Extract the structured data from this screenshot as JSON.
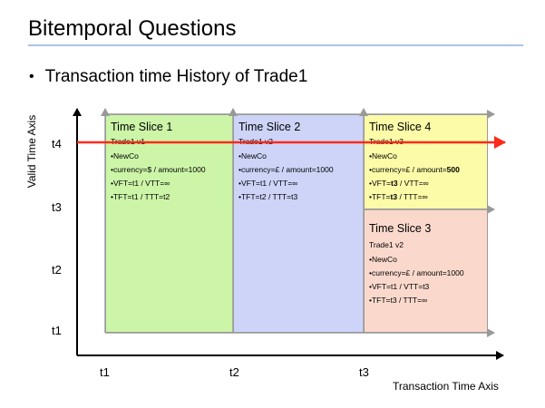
{
  "title": "Bitemporal Questions",
  "bullet": "Transaction time History of Trade1",
  "axes": {
    "y_label": "Valid Time Axis",
    "x_label": "Transaction Time Axis",
    "y_ticks": [
      "t4",
      "t3",
      "t2",
      "t1"
    ],
    "x_ticks": [
      "t1",
      "t2",
      "t3"
    ]
  },
  "colors": {
    "slice1": "#ccf5a8",
    "slice2": "#cdd4f8",
    "slice3": "#fad9cc",
    "slice4": "#fbfba8",
    "query_line": "#ff2a1a",
    "axis": "#000000",
    "grid_arrow": "#999999"
  },
  "slices": {
    "s1": {
      "heading": "Time Slice 1",
      "version": "Trade1 v1",
      "lines": [
        "NewCo",
        "currency=$ / amount=1000",
        "VFT=t1 / VTT=∞",
        "TFT=t1 / TTT=t2"
      ]
    },
    "s2": {
      "heading": "Time Slice 2",
      "version": "Trade1 v2",
      "lines": [
        "NewCo",
        "currency=£ / amount=1000",
        "VFT=t1 / VTT=∞",
        "TFT=t2 / TTT=t3"
      ]
    },
    "s4": {
      "heading": "Time Slice 4",
      "version": "Trade1 v3",
      "line1": "NewCo",
      "line2_pre": "currency=£ / amount=",
      "line2_bold": "500",
      "line3_pre": "VFT=",
      "line3_bold": "t3",
      "line3_post": " / VTT=∞",
      "line4_pre": "TFT=",
      "line4_bold": "t3",
      "line4_post": " / TTT=∞"
    },
    "s3": {
      "heading": "Time Slice 3",
      "version": "Trade1 v2",
      "lines": [
        "NewCo",
        "currency=£ / amount=1000",
        "VFT=t1 / VTT=t3",
        "TFT=t3 / TTT=∞"
      ]
    }
  }
}
